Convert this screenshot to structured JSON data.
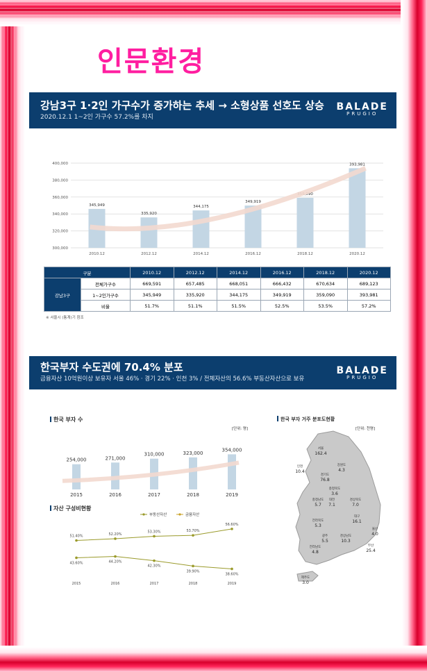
{
  "page_title": "인문환경",
  "section1": {
    "title": "강남3구 1·2인 가구수가 증가하는 추세 → 소형상품 선호도 상승",
    "subtitle": "2020.12.1 1~2인 가구수 57.2%를 차지",
    "logo": {
      "name": "BALADE",
      "sub": "PRUGIO"
    },
    "table": {
      "headers": [
        "구분",
        "2010.12",
        "2012.12",
        "2014.12",
        "2016.12",
        "2018.12",
        "2020.12"
      ],
      "group_label": "강남3구",
      "rows": [
        {
          "label": "전체가구수",
          "values": [
            "669,591",
            "657,485",
            "668,051",
            "666,432",
            "670,634",
            "689,123"
          ]
        },
        {
          "label": "1~2인가구수",
          "values": [
            "345,949",
            "335,920",
            "344,175",
            "349,919",
            "359,090",
            "393,981"
          ]
        },
        {
          "label": "비율",
          "values": [
            "51.7%",
            "51.1%",
            "51.5%",
            "52.5%",
            "53.5%",
            "57.2%"
          ]
        }
      ]
    },
    "note": "※ 서울시 (통계)기 참조"
  },
  "section2": {
    "title": "한국부자 수도권에 70.4% 분포",
    "subtitle": "금융자산 10억원이상 보유자 서울 46% · 경기 22% · 인천 3% / 전체자산의 56.6% 부동산자산으로 보유",
    "logo": {
      "name": "BALADE",
      "sub": "PRUGIO"
    },
    "rich_title": "한국 부자 수",
    "rich_unit": "[단위: 명]",
    "asset_title": "자산 구성비현황",
    "map_title": "한국 부자 거주 분포도현황",
    "map_unit": "[단위: 천명]",
    "map_regions": [
      {
        "name": "서울",
        "value": "162.4"
      },
      {
        "name": "인천",
        "value": "10.4"
      },
      {
        "name": "강원도",
        "value": "4.3"
      },
      {
        "name": "경기도",
        "value": "76.8"
      },
      {
        "name": "충청북도",
        "value": "3.6"
      },
      {
        "name": "충청남도",
        "value": "5.7"
      },
      {
        "name": "대전",
        "value": "7.1"
      },
      {
        "name": "경상북도",
        "value": "7.0"
      },
      {
        "name": "대구",
        "value": "16.1"
      },
      {
        "name": "전라북도",
        "value": "5.3"
      },
      {
        "name": "울산",
        "value": "4.0"
      },
      {
        "name": "광주",
        "value": "5.5"
      },
      {
        "name": "경상남도",
        "value": "10.3"
      },
      {
        "name": "부산",
        "value": "25.4"
      },
      {
        "name": "전라남도",
        "value": "4.8"
      },
      {
        "name": "제주도",
        "value": "3.0"
      }
    ]
  },
  "colors": {
    "navy": "#0c3e6e",
    "bar": "#c3d6e4",
    "line": "#9a9a2a",
    "title_pink": "#ff1ea0"
  },
  "chart_data": [
    {
      "type": "bar",
      "title": "",
      "categories": [
        "2010.12",
        "2012.12",
        "2014.12",
        "2016.12",
        "2018.12",
        "2020.12"
      ],
      "values": [
        345949,
        335920,
        344175,
        349919,
        359090,
        393981
      ],
      "data_labels": [
        "345,949",
        "335,920",
        "344,175",
        "349,919",
        "359,090",
        "393,981"
      ],
      "ylim": [
        300000,
        400000
      ],
      "yticks": [
        "300,000",
        "320,000",
        "340,000",
        "360,000",
        "380,000",
        "400,000"
      ],
      "ytick_values": [
        300000,
        320000,
        340000,
        360000,
        380000,
        400000
      ],
      "grid": true
    },
    {
      "type": "bar",
      "title": "한국 부자 수",
      "categories": [
        "2015",
        "2016",
        "2017",
        "2018",
        "2019"
      ],
      "values": [
        254000,
        271000,
        310000,
        323000,
        354000
      ],
      "data_labels": [
        "254,000",
        "271,000",
        "310,000",
        "323,000",
        "354,000"
      ],
      "grid": false
    },
    {
      "type": "line",
      "title": "자산 구성비현황",
      "x": [
        "2015",
        "2016",
        "2017",
        "2018",
        "2019"
      ],
      "series": [
        {
          "name": "부동산자산",
          "values": [
            51.4,
            52.2,
            53.3,
            53.7,
            56.6
          ],
          "labels": [
            "51.40%",
            "52.20%",
            "53.30%",
            "53.70%",
            "56.60%"
          ]
        },
        {
          "name": "금융자산",
          "values": [
            43.6,
            44.2,
            42.3,
            39.9,
            38.6
          ],
          "labels": [
            "43.60%",
            "44.20%",
            "42.30%",
            "39.90%",
            "38.60%"
          ]
        }
      ],
      "legend": "top-center"
    }
  ]
}
